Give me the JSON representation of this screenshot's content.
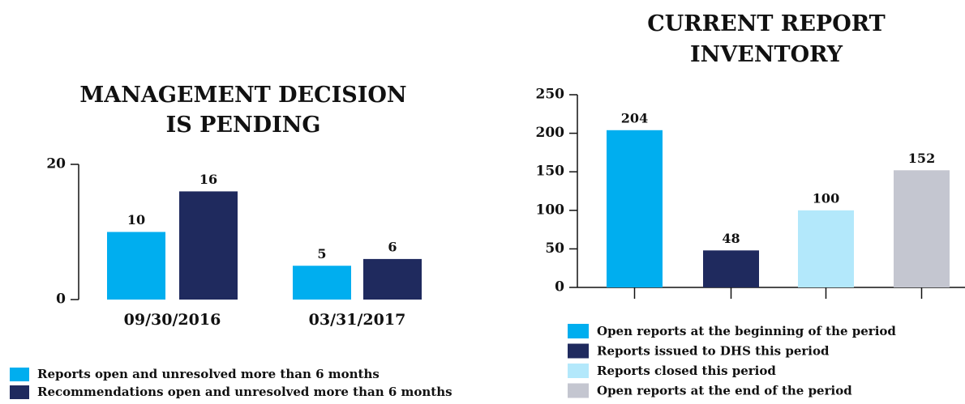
{
  "chart_data": [
    {
      "type": "bar",
      "title": "MANAGEMENT DECISION IS PENDING",
      "categories": [
        "09/30/2016",
        "03/31/2017"
      ],
      "series": [
        {
          "name": "Reports open and unresolved more than 6 months",
          "color": "#00aeef",
          "values": [
            10,
            5
          ]
        },
        {
          "name": "Recommendations open and unresolved more than 6 months",
          "color": "#1f2a5e",
          "values": [
            16,
            6
          ]
        }
      ],
      "ylim": [
        0,
        20
      ],
      "yticks": [
        0,
        20
      ]
    },
    {
      "type": "bar",
      "title": "CURRENT REPORT INVENTORY",
      "categories": [
        "Open reports at the beginning of the period",
        "Reports issued to DHS this period",
        "Reports closed this period",
        "Open reports at the end of the period"
      ],
      "values": [
        204,
        48,
        100,
        152
      ],
      "colors": [
        "#00aeef",
        "#1f2a5e",
        "#b3e8fb",
        "#c4c6d0"
      ],
      "ylim": [
        0,
        250
      ],
      "yticks": [
        0,
        50,
        100,
        150,
        200,
        250
      ]
    }
  ]
}
